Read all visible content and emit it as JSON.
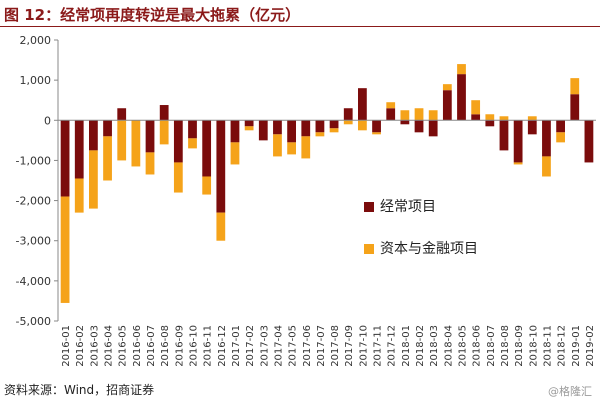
{
  "title": "图 12：经常项再度转逆是最大拖累（亿元）",
  "source": "资料来源：Wind，招商证券",
  "watermark": "@格隆汇",
  "colors": {
    "current_account": "#7b0c0c",
    "capital_financial": "#f5a31a",
    "title": "#8b1a1a"
  },
  "chart_data": {
    "type": "bar",
    "stacked": true,
    "title": "",
    "xlabel": "",
    "ylabel": "",
    "ylim": [
      -5000,
      2000
    ],
    "yticks": [
      2000,
      1000,
      0,
      -1000,
      -2000,
      -3000,
      -4000,
      -5000
    ],
    "ytick_labels": [
      "2,000",
      "1,000",
      "0",
      "-1,000",
      "-2,000",
      "-3,000",
      "-4,000",
      "-5,000"
    ],
    "grid": false,
    "legend_position": "lower-right inside plot",
    "categories": [
      "2016-01",
      "2016-02",
      "2016-03",
      "2016-04",
      "2016-05",
      "2016-06",
      "2016-07",
      "2016-08",
      "2016-09",
      "2016-10",
      "2016-11",
      "2016-12",
      "2017-01",
      "2017-02",
      "2017-03",
      "2017-04",
      "2017-05",
      "2017-06",
      "2017-07",
      "2017-08",
      "2017-09",
      "2017-10",
      "2017-11",
      "2017-12",
      "2018-01",
      "2018-02",
      "2018-03",
      "2018-04",
      "2018-05",
      "2018-06",
      "2018-07",
      "2018-08",
      "2018-09",
      "2018-10",
      "2018-11",
      "2018-12",
      "2019-01",
      "2019-02"
    ],
    "series": [
      {
        "name": "经常项目",
        "values": [
          -1900,
          -1450,
          -750,
          -400,
          300,
          0,
          -800,
          380,
          -1050,
          -450,
          -1400,
          -2300,
          -550,
          -150,
          -500,
          -350,
          -550,
          -400,
          -300,
          -200,
          300,
          800,
          -300,
          300,
          -100,
          -300,
          -400,
          750,
          1150,
          150,
          -150,
          -750,
          -1050,
          -350,
          -900,
          -300,
          650,
          -1050
        ]
      },
      {
        "name": "资本与金融项目",
        "values": [
          -2650,
          -850,
          -1450,
          -1100,
          -1000,
          -1150,
          -550,
          -600,
          -750,
          -250,
          -450,
          -700,
          -550,
          -100,
          0,
          -550,
          -300,
          -550,
          -100,
          -100,
          -100,
          -250,
          -50,
          150,
          250,
          300,
          250,
          150,
          250,
          350,
          150,
          100,
          -50,
          100,
          -500,
          -250,
          400,
          0
        ]
      }
    ]
  }
}
